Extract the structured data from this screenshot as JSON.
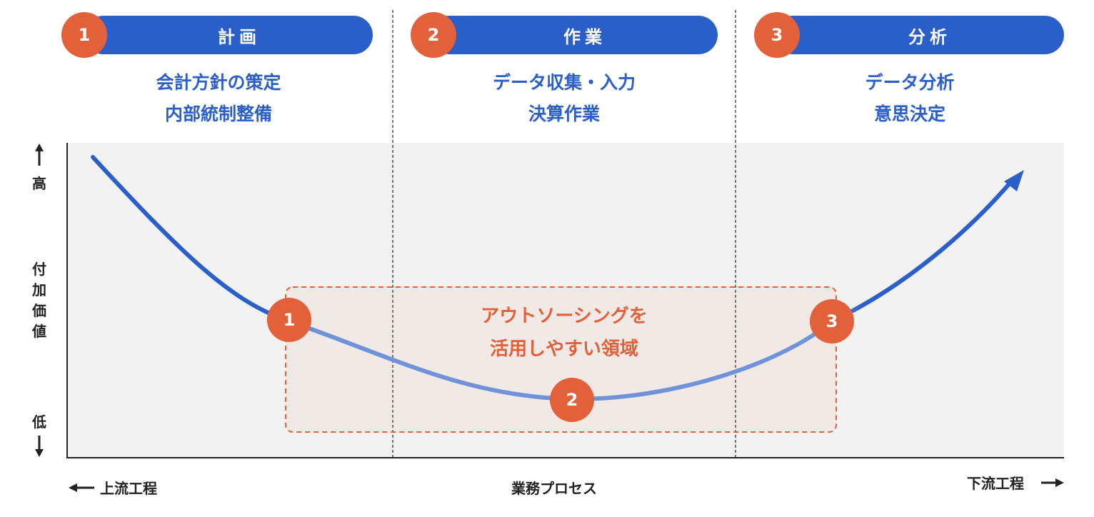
{
  "phases": [
    {
      "number": "1",
      "title": "計画",
      "lines": [
        "会計方針の策定",
        "内部統制整備"
      ]
    },
    {
      "number": "2",
      "title": "作業",
      "lines": [
        "データ収集・入力",
        "決算作業"
      ]
    },
    {
      "number": "3",
      "title": "分析",
      "lines": [
        "データ分析",
        "意思決定"
      ]
    }
  ],
  "y_axis": {
    "high": "高",
    "label": "付加価値",
    "low": "低"
  },
  "x_axis": {
    "left": "上流工程",
    "center": "業務プロセス",
    "right": "下流工程"
  },
  "outsourcing_zone": {
    "line1": "アウトソーシングを",
    "line2": "活用しやすい領域"
  },
  "curve_markers": [
    "1",
    "2",
    "3"
  ],
  "colors": {
    "blue": "#2a5ec9",
    "light_blue": "#6f92d8",
    "orange": "#e2613a",
    "panel": "#f2f2f2"
  }
}
